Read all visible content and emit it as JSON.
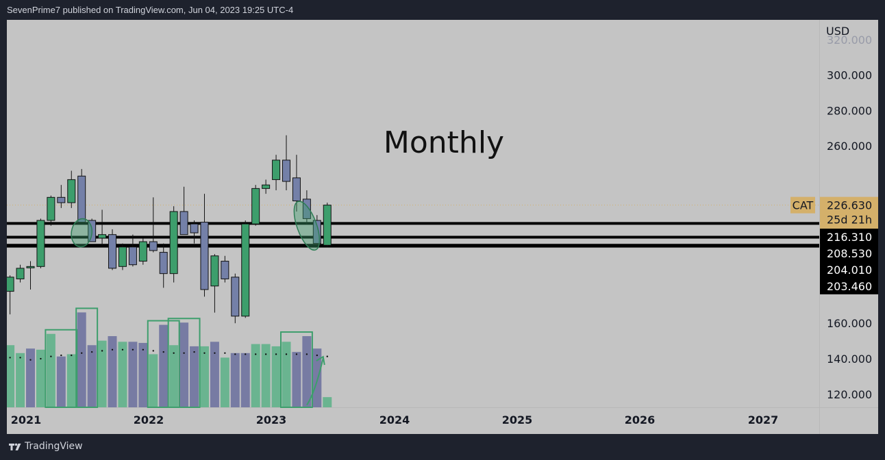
{
  "header": {
    "publish_line": "SevenPrime7 published on TradingView.com, Jun 04, 2023 19:25 UTC-4"
  },
  "footer": {
    "brand": "TradingView",
    "logo_icon": "tradingview-logo-icon"
  },
  "colors": {
    "background": "#c4c4c4",
    "frame": "#1e222d",
    "bull": "#3d9e6c",
    "bear": "#7480a8",
    "vol_bull": "#5ab287",
    "vol_bear": "#6a6f9e",
    "highlight": "#3d9e6c",
    "price_label": "#d4b06a",
    "line_label": "#000000"
  },
  "chart_data": {
    "type": "candlestick",
    "symbol": "CAT",
    "annotation": "Monthly",
    "currency": "USD",
    "x_axis": {
      "tick_labels": [
        "2021",
        "2022",
        "2023",
        "2024",
        "2025",
        "2026",
        "2027"
      ]
    },
    "y_axis": {
      "range": [
        112,
        318
      ],
      "tick_labels": [
        "120.000",
        "140.000",
        "160.000",
        "260.000",
        "280.000",
        "300.000"
      ],
      "top_tick_partial": "320.000"
    },
    "current_price": {
      "symbol_label": "CAT",
      "value": "226.630",
      "countdown": "25d 21h",
      "level": 226.63
    },
    "level_lines": [
      {
        "value": "216.310",
        "level": 216.31
      },
      {
        "value": "208.530",
        "level": 208.53
      },
      {
        "value": "204.010",
        "level": 204.01
      },
      {
        "value": "203.460",
        "level": 203.46
      }
    ],
    "candles": [
      {
        "t": "2020-11",
        "o": 178,
        "h": 187,
        "l": 165,
        "c": 186
      },
      {
        "t": "2020-12",
        "o": 185,
        "h": 193,
        "l": 183,
        "c": 191
      },
      {
        "t": "2021-01",
        "o": 192,
        "h": 195,
        "l": 179,
        "c": 192
      },
      {
        "t": "2021-02",
        "o": 192,
        "h": 219,
        "l": 191,
        "c": 218
      },
      {
        "t": "2021-03",
        "o": 218,
        "h": 232,
        "l": 215,
        "c": 231
      },
      {
        "t": "2021-04",
        "o": 231,
        "h": 238,
        "l": 225,
        "c": 228
      },
      {
        "t": "2021-05",
        "o": 228,
        "h": 246,
        "l": 225,
        "c": 241
      },
      {
        "t": "2021-06",
        "o": 243,
        "h": 247,
        "l": 218,
        "c": 217
      },
      {
        "t": "2021-07",
        "o": 218,
        "h": 219,
        "l": 206,
        "c": 206
      },
      {
        "t": "2021-08",
        "o": 208,
        "h": 224,
        "l": 204,
        "c": 210
      },
      {
        "t": "2021-09",
        "o": 210,
        "h": 213,
        "l": 190,
        "c": 191
      },
      {
        "t": "2021-10",
        "o": 192,
        "h": 205,
        "l": 190,
        "c": 203
      },
      {
        "t": "2021-11",
        "o": 203,
        "h": 210,
        "l": 192,
        "c": 193
      },
      {
        "t": "2021-12",
        "o": 195,
        "h": 208,
        "l": 193,
        "c": 206
      },
      {
        "t": "2022-01",
        "o": 206,
        "h": 231,
        "l": 200,
        "c": 201
      },
      {
        "t": "2022-02",
        "o": 200,
        "h": 205,
        "l": 180,
        "c": 188
      },
      {
        "t": "2022-03",
        "o": 188,
        "h": 226,
        "l": 183,
        "c": 223
      },
      {
        "t": "2022-04",
        "o": 223,
        "h": 237,
        "l": 210,
        "c": 210
      },
      {
        "t": "2022-05",
        "o": 216,
        "h": 218,
        "l": 205,
        "c": 211
      },
      {
        "t": "2022-06",
        "o": 217,
        "h": 233,
        "l": 175,
        "c": 179
      },
      {
        "t": "2022-07",
        "o": 181,
        "h": 199,
        "l": 166,
        "c": 198
      },
      {
        "t": "2022-08",
        "o": 195,
        "h": 198,
        "l": 183,
        "c": 185
      },
      {
        "t": "2022-09",
        "o": 186,
        "h": 188,
        "l": 160,
        "c": 164
      },
      {
        "t": "2022-10",
        "o": 164,
        "h": 218,
        "l": 163,
        "c": 216
      },
      {
        "t": "2022-11",
        "o": 216,
        "h": 238,
        "l": 215,
        "c": 236
      },
      {
        "t": "2022-12",
        "o": 236,
        "h": 241,
        "l": 233,
        "c": 238
      },
      {
        "t": "2023-01",
        "o": 241,
        "h": 255,
        "l": 235,
        "c": 252
      },
      {
        "t": "2023-02",
        "o": 252,
        "h": 266,
        "l": 235,
        "c": 240
      },
      {
        "t": "2023-03",
        "o": 242,
        "h": 255,
        "l": 223,
        "c": 229
      },
      {
        "t": "2023-04",
        "o": 230,
        "h": 235,
        "l": 216,
        "c": 219
      },
      {
        "t": "2023-05",
        "o": 218,
        "h": 221,
        "l": 204,
        "c": 205
      },
      {
        "t": "2023-06",
        "o": 204,
        "h": 228,
        "l": 203,
        "c": 226.63
      }
    ],
    "volume": [
      {
        "t": "2020-11",
        "v": 55,
        "bull": true
      },
      {
        "t": "2020-12",
        "v": 48,
        "bull": true
      },
      {
        "t": "2021-01",
        "v": 52,
        "bull": false
      },
      {
        "t": "2021-02",
        "v": 51,
        "bull": true
      },
      {
        "t": "2021-03",
        "v": 65,
        "bull": true
      },
      {
        "t": "2021-04",
        "v": 45,
        "bull": false
      },
      {
        "t": "2021-05",
        "v": 47,
        "bull": true
      },
      {
        "t": "2021-06",
        "v": 84,
        "bull": false
      },
      {
        "t": "2021-07",
        "v": 55,
        "bull": false
      },
      {
        "t": "2021-08",
        "v": 59,
        "bull": true
      },
      {
        "t": "2021-09",
        "v": 63,
        "bull": false
      },
      {
        "t": "2021-10",
        "v": 58,
        "bull": true
      },
      {
        "t": "2021-11",
        "v": 58,
        "bull": false
      },
      {
        "t": "2021-12",
        "v": 57,
        "bull": false
      },
      {
        "t": "2022-01",
        "v": 47,
        "bull": true
      },
      {
        "t": "2022-02",
        "v": 73,
        "bull": false
      },
      {
        "t": "2022-03",
        "v": 55,
        "bull": true
      },
      {
        "t": "2022-04",
        "v": 75,
        "bull": false
      },
      {
        "t": "2022-05",
        "v": 54,
        "bull": false
      },
      {
        "t": "2022-06",
        "v": 54,
        "bull": true
      },
      {
        "t": "2022-07",
        "v": 58,
        "bull": false
      },
      {
        "t": "2022-08",
        "v": 44,
        "bull": true
      },
      {
        "t": "2022-09",
        "v": 48,
        "bull": false
      },
      {
        "t": "2022-10",
        "v": 48,
        "bull": false
      },
      {
        "t": "2022-11",
        "v": 56,
        "bull": true
      },
      {
        "t": "2022-12",
        "v": 56,
        "bull": true
      },
      {
        "t": "2023-01",
        "v": 54,
        "bull": true
      },
      {
        "t": "2023-02",
        "v": 58,
        "bull": true
      },
      {
        "t": "2023-03",
        "v": 49,
        "bull": false
      },
      {
        "t": "2023-04",
        "v": 63,
        "bull": false
      },
      {
        "t": "2023-05",
        "v": 52,
        "bull": false
      },
      {
        "t": "2023-06",
        "v": 9,
        "bull": true
      }
    ],
    "volume_ma": [
      {
        "t": "2020-11",
        "v": 44
      },
      {
        "t": "2020-12",
        "v": 44
      },
      {
        "t": "2021-01",
        "v": 42
      },
      {
        "t": "2021-02",
        "v": 43
      },
      {
        "t": "2021-03",
        "v": 45
      },
      {
        "t": "2021-04",
        "v": 46
      },
      {
        "t": "2021-05",
        "v": 46
      },
      {
        "t": "2021-06",
        "v": 48
      },
      {
        "t": "2021-07",
        "v": 49
      },
      {
        "t": "2021-08",
        "v": 50
      },
      {
        "t": "2021-09",
        "v": 51
      },
      {
        "t": "2021-10",
        "v": 51
      },
      {
        "t": "2021-11",
        "v": 51
      },
      {
        "t": "2021-12",
        "v": 51
      },
      {
        "t": "2022-01",
        "v": 50
      },
      {
        "t": "2022-02",
        "v": 49
      },
      {
        "t": "2022-03",
        "v": 48
      },
      {
        "t": "2022-04",
        "v": 48
      },
      {
        "t": "2022-05",
        "v": 49
      },
      {
        "t": "2022-06",
        "v": 48
      },
      {
        "t": "2022-07",
        "v": 48
      },
      {
        "t": "2022-08",
        "v": 48
      },
      {
        "t": "2022-09",
        "v": 47
      },
      {
        "t": "2022-10",
        "v": 47
      },
      {
        "t": "2022-11",
        "v": 47
      },
      {
        "t": "2022-12",
        "v": 47
      },
      {
        "t": "2023-01",
        "v": 47
      },
      {
        "t": "2023-02",
        "v": 47
      },
      {
        "t": "2023-03",
        "v": 47
      },
      {
        "t": "2023-04",
        "v": 47
      },
      {
        "t": "2023-05",
        "v": 46
      },
      {
        "t": "2023-06",
        "v": 45
      }
    ],
    "volume_highlights": [
      [
        "2021-03",
        "2021-05"
      ],
      [
        "2021-06",
        "2021-07"
      ],
      [
        "2022-01",
        "2022-03"
      ],
      [
        "2022-03",
        "2022-05"
      ],
      [
        "2023-02",
        "2023-04"
      ]
    ],
    "ellipse_marks": [
      {
        "center_t": "2021-06",
        "center_price": 211,
        "rx_months": 1.0,
        "ry_price": 8,
        "rotation_deg": 8
      },
      {
        "center_t": "2023-04",
        "center_price": 215,
        "rx_months": 0.95,
        "ry_price": 14.5,
        "rotation_deg": -20
      }
    ],
    "arrow_mark": {
      "from": {
        "t": "2023-04",
        "v": 2
      },
      "to": {
        "t": "2023-06",
        "v": 46
      }
    }
  }
}
